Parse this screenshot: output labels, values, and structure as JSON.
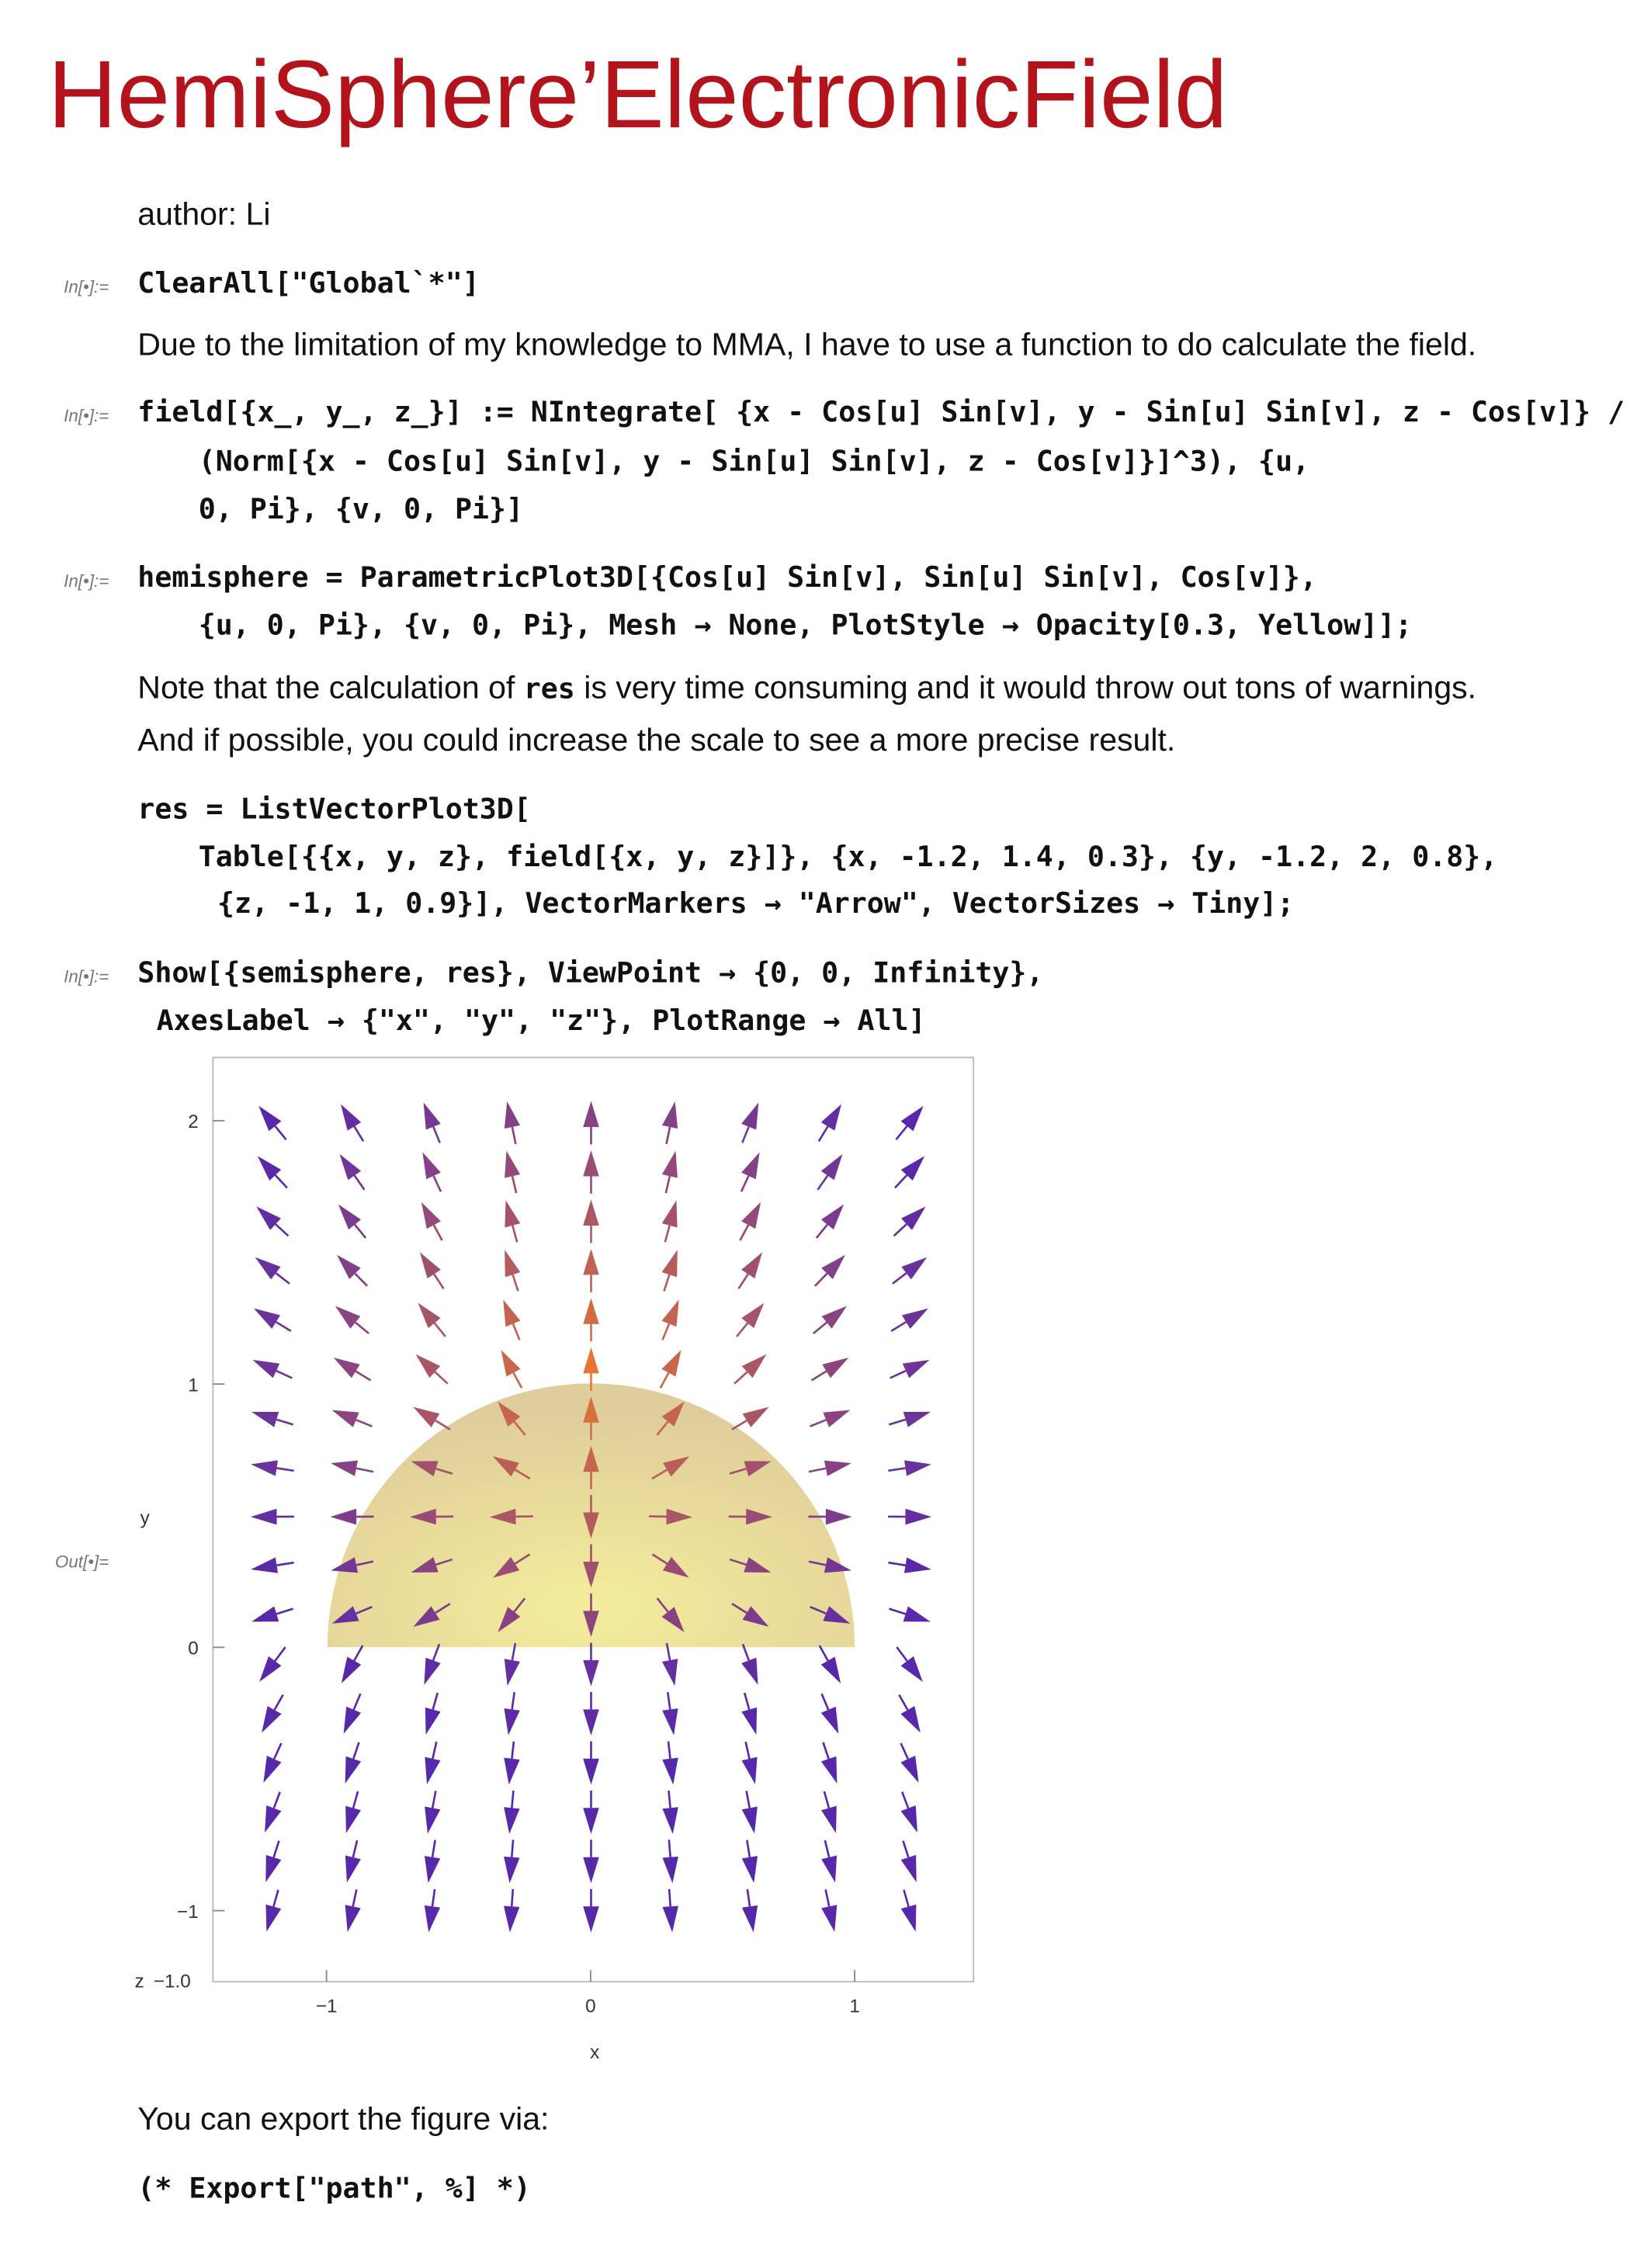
{
  "title": "HemiSphere’ElectronicField",
  "author": "author: Li",
  "cells": [
    {
      "label": "In[•]:=",
      "lines": [
        "ClearAll[\"Global`*\"]"
      ]
    },
    {
      "lines": [
        "Due to the limitation of my knowledge to MMA, I have to use a function to do calculate the field."
      ]
    },
    {
      "label": "In[•]:=",
      "lines": [
        "field[{x_, y_, z_}] := NIntegrate[ {x - Cos[u] Sin[v], y - Sin[u] Sin[v], z - Cos[v]} /",
        "(Norm[{x - Cos[u] Sin[v], y - Sin[u] Sin[v], z - Cos[v]}]^3), {u,",
        "0, Pi}, {v, 0, Pi}]"
      ]
    },
    {
      "label": "In[•]:=",
      "lines": [
        "hemisphere = ParametricPlot3D[{Cos[u] Sin[v], Sin[u] Sin[v], Cos[v]},",
        "{u, 0, Pi}, {v, 0, Pi}, Mesh → None, PlotStyle → Opacity[0.3, Yellow]];"
      ]
    },
    {
      "lines": [
        [
          "Note that the calculation of ",
          "res",
          " is very time consuming and it would throw out tons of warnings."
        ],
        "And if possible, you could increase the scale to see a more precise result."
      ]
    },
    {
      "lines": [
        "res = ListVectorPlot3D[",
        "Table[{{x, y, z}, field[{x, y, z}]}, {x, -1.2, 1.4, 0.3}, {y, -1.2, 2, 0.8},",
        "{z, -1, 1, 0.9}], VectorMarkers → \"Arrow\", VectorSizes → Tiny];"
      ]
    },
    {
      "label": "In[•]:=",
      "lines": [
        "Show[{semisphere, res}, ViewPoint → {0, 0, Infinity},",
        "AxesLabel → {\"x\", \"y\", \"z\"}, PlotRange → All]"
      ]
    },
    {
      "lines": [
        "You can export the figure via:"
      ]
    },
    {
      "lines": [
        "(* Export[\"path\", %] *)"
      ]
    }
  ],
  "plot": {
    "output_label": "Out[•]=",
    "xlim": [
      -1.43,
      1.45
    ],
    "ylim": [
      -1.27,
      2.24
    ],
    "xticks": [
      {
        "value": -1,
        "label": "−1"
      },
      0,
      1
    ],
    "yticks": [
      {
        "value": -1,
        "label": "−1"
      },
      0,
      1,
      2
    ],
    "x_label": "x",
    "y_label": "y",
    "z_label": "z",
    "z_tick": "−1.0"
  }
}
